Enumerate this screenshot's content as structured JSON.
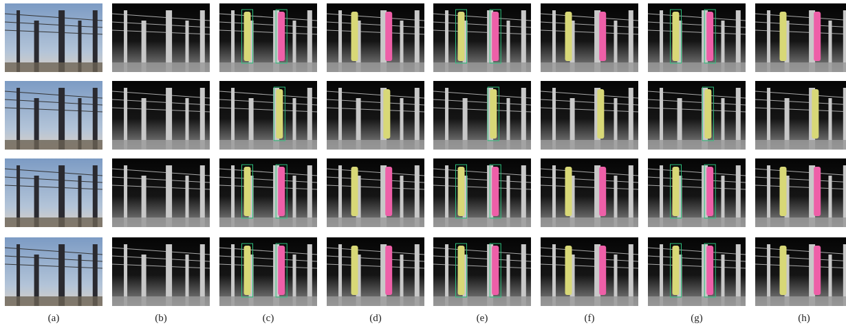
{
  "columns": [
    {
      "label": "(a)"
    },
    {
      "label": "(b)"
    },
    {
      "label": "(c)"
    },
    {
      "label": "(d)"
    },
    {
      "label": "(e)"
    },
    {
      "label": "(f)"
    },
    {
      "label": "(g)"
    },
    {
      "label": "(h)"
    }
  ]
}
